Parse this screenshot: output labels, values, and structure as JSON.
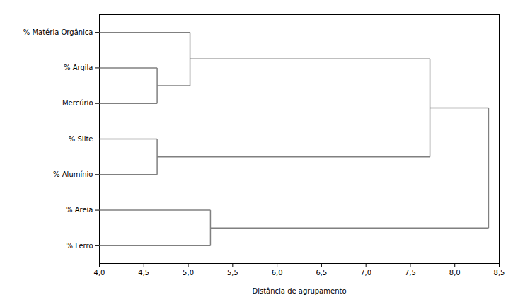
{
  "chart_data": {
    "type": "dendrogram",
    "xlabel": "Distância de agrupamento",
    "xlim": [
      4.0,
      8.5
    ],
    "xticks": [
      {
        "value": 4.0,
        "label": "4,0"
      },
      {
        "value": 4.5,
        "label": "4,5"
      },
      {
        "value": 5.0,
        "label": "5,0"
      },
      {
        "value": 5.5,
        "label": "5,5"
      },
      {
        "value": 6.0,
        "label": "6,0"
      },
      {
        "value": 6.5,
        "label": "6,5"
      },
      {
        "value": 7.0,
        "label": "7,0"
      },
      {
        "value": 7.5,
        "label": "7,5"
      },
      {
        "value": 8.0,
        "label": "8,0"
      },
      {
        "value": 8.5,
        "label": "8,5"
      }
    ],
    "color": "#808080",
    "grid": false,
    "tree": {
      "distance": 8.38,
      "children": [
        {
          "distance": 7.72,
          "children": [
            {
              "distance": 5.02,
              "children": [
                {
                  "name": "% Matéria Orgânica"
                },
                {
                  "distance": 4.65,
                  "children": [
                    {
                      "name": "% Argila"
                    },
                    {
                      "name": "Mercúrio"
                    }
                  ]
                }
              ]
            },
            {
              "distance": 4.65,
              "children": [
                {
                  "name": "% Silte"
                },
                {
                  "name": "% Alumínio"
                }
              ]
            }
          ]
        },
        {
          "distance": 5.25,
          "children": [
            {
              "name": "% Areia"
            },
            {
              "name": "% Ferro"
            }
          ]
        }
      ]
    }
  }
}
